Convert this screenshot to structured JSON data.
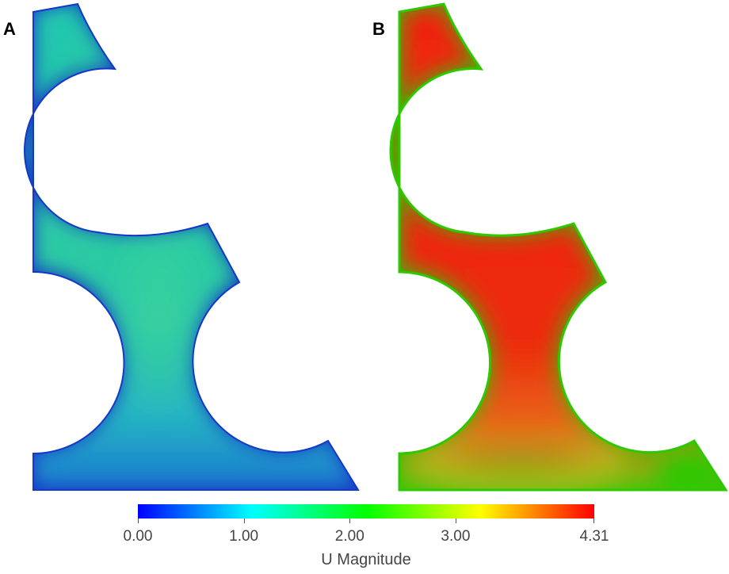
{
  "panels": [
    {
      "label": "A",
      "min_color": "#1438c8",
      "max_color": "#2ec8a6"
    },
    {
      "label": "B",
      "min_color": "#2ec800",
      "max_color": "#ee1c0c"
    }
  ],
  "colorbar": {
    "title": "U Magnitude",
    "min": 0.0,
    "max": 4.31,
    "ticks": [
      "0.00",
      "1.00",
      "2.00",
      "3.00",
      "4.31"
    ],
    "tick_values": [
      0.0,
      1.0,
      2.0,
      3.0,
      4.31
    ],
    "colormap": "rainbow",
    "stops": [
      "#0000ff",
      "#00ffff",
      "#00ff00",
      "#ffff00",
      "#ff0000"
    ]
  }
}
